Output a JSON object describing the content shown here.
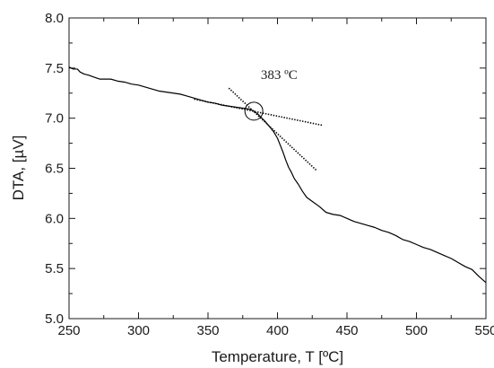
{
  "chart_data": {
    "type": "line",
    "title": "",
    "xlabel": "Temperature, T [ºC]",
    "ylabel": "DTA, [µV]",
    "xlim": [
      250,
      550
    ],
    "ylim": [
      5.0,
      8.0
    ],
    "x_ticks": [
      250,
      300,
      350,
      400,
      450,
      500,
      550
    ],
    "x_tick_labels": [
      "250",
      "300",
      "350",
      "400",
      "450",
      "500",
      "550"
    ],
    "y_ticks": [
      5.0,
      5.5,
      6.0,
      6.5,
      7.0,
      7.5,
      8.0
    ],
    "y_tick_labels": [
      "5.0",
      "5.5",
      "6.0",
      "6.5",
      "7.0",
      "7.5",
      "8.0"
    ],
    "grid": false,
    "series": [
      {
        "x": [
          250,
          253,
          256,
          258,
          261,
          264,
          268,
          272,
          276,
          280,
          285,
          290,
          295,
          300,
          305,
          310,
          315,
          320,
          325,
          330,
          335,
          340,
          345,
          350,
          355,
          360,
          365,
          370,
          375,
          380,
          383,
          386,
          388,
          391,
          394,
          397,
          400,
          402,
          404,
          406,
          408,
          410,
          412,
          415,
          418,
          421,
          425,
          430,
          435,
          440,
          445,
          450,
          455,
          460,
          465,
          470,
          475,
          480,
          485,
          490,
          495,
          500,
          505,
          510,
          515,
          520,
          525,
          530,
          535,
          540,
          545,
          550
        ],
        "y": [
          7.51,
          7.49,
          7.49,
          7.46,
          7.44,
          7.43,
          7.41,
          7.39,
          7.39,
          7.39,
          7.37,
          7.36,
          7.34,
          7.33,
          7.31,
          7.29,
          7.27,
          7.26,
          7.25,
          7.24,
          7.22,
          7.2,
          7.18,
          7.16,
          7.15,
          7.13,
          7.12,
          7.11,
          7.1,
          7.09,
          7.07,
          7.04,
          7.01,
          6.97,
          6.92,
          6.87,
          6.8,
          6.73,
          6.66,
          6.58,
          6.51,
          6.46,
          6.4,
          6.34,
          6.27,
          6.21,
          6.17,
          6.12,
          6.06,
          6.04,
          6.03,
          6.0,
          5.97,
          5.95,
          5.93,
          5.91,
          5.88,
          5.86,
          5.83,
          5.79,
          5.77,
          5.74,
          5.71,
          5.69,
          5.66,
          5.63,
          5.6,
          5.56,
          5.52,
          5.49,
          5.42,
          5.36
        ]
      }
    ],
    "tangent_lines": [
      {
        "x": [
          340,
          432
        ],
        "y": [
          7.19,
          6.93
        ]
      },
      {
        "x": [
          365,
          428
        ],
        "y": [
          7.3,
          6.48
        ]
      }
    ],
    "marker": {
      "x": 383,
      "y": 7.07,
      "shape": "circle"
    },
    "annotation": {
      "text": "383 ºC",
      "x": 388,
      "y": 7.39
    }
  }
}
